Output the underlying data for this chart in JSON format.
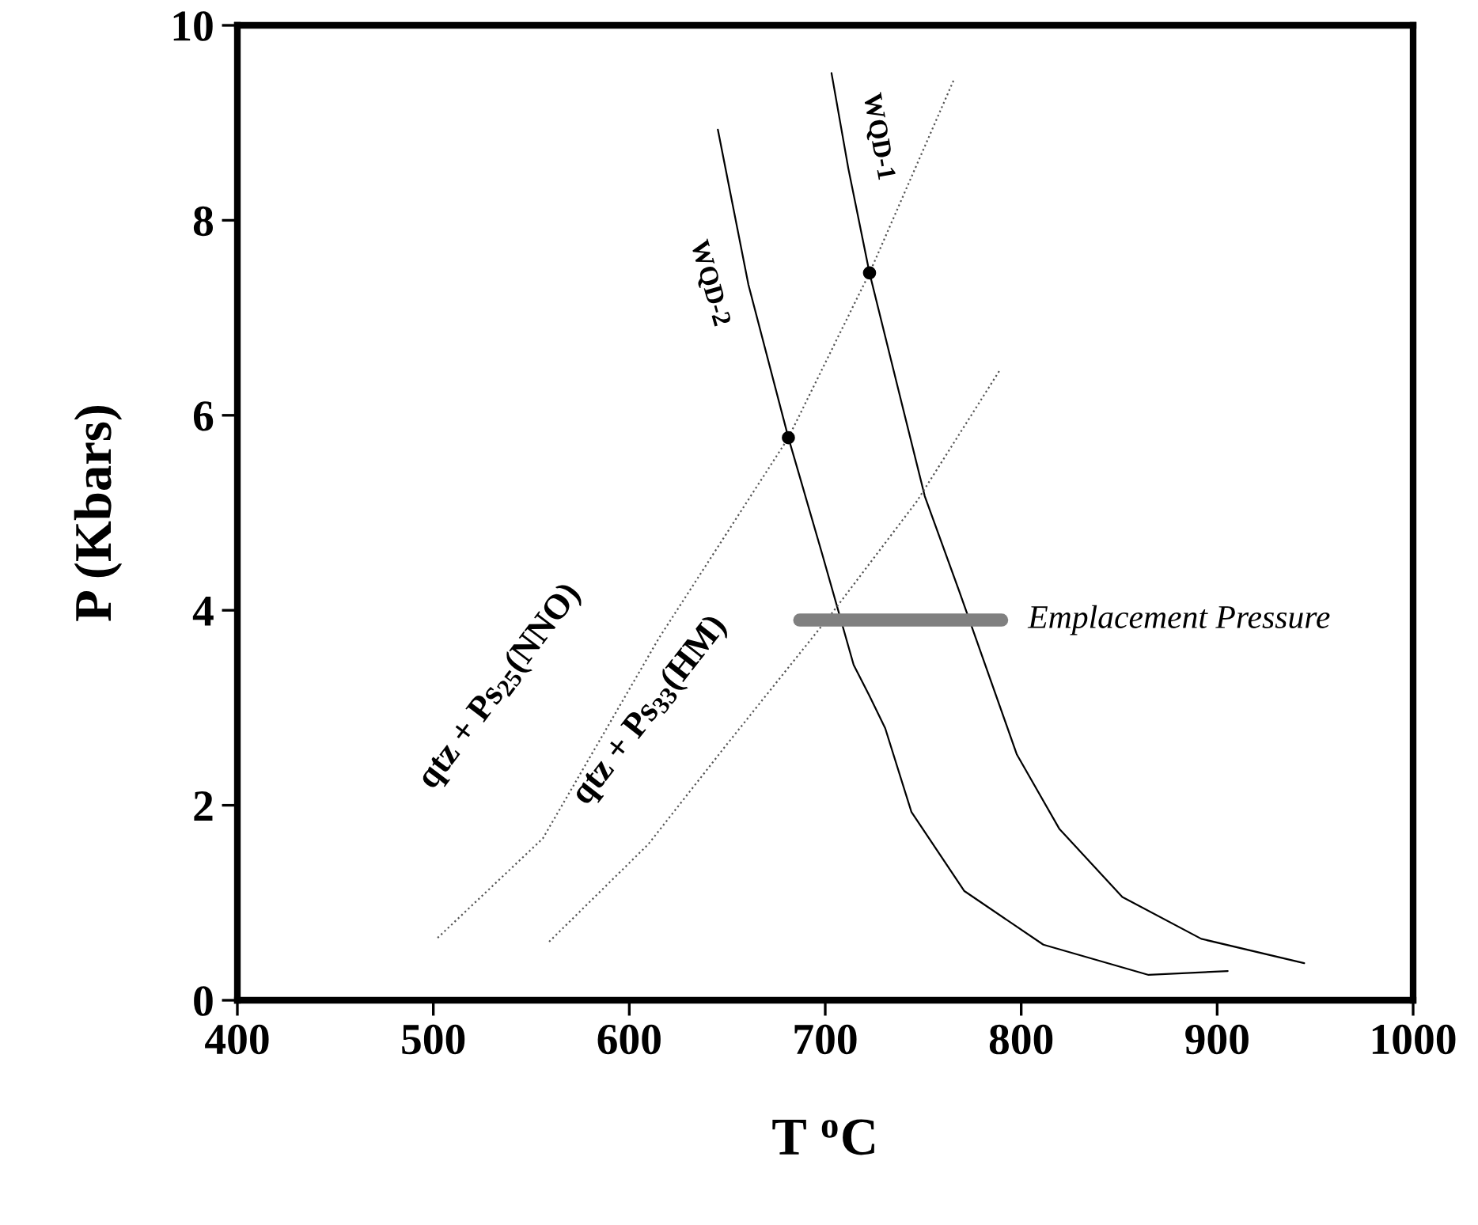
{
  "chart_data": {
    "type": "line",
    "xlabel": "T $^{o}$C",
    "ylabel": "P (Kbars)",
    "xlim": [
      400,
      1000
    ],
    "ylim": [
      0,
      10
    ],
    "xticks": [
      400,
      500,
      600,
      700,
      800,
      900,
      1000
    ],
    "yticks": [
      0,
      2,
      4,
      6,
      8,
      10
    ],
    "grid": false,
    "legend": false,
    "series": [
      {
        "name": "WQD-1",
        "color": "#000000",
        "line_style": "solid",
        "x": [
          703.2,
          711.8,
          722.6,
          738.7,
          750.8,
          768.3,
          797.8,
          819.4,
          851.6,
          891.9,
          944.4
        ],
        "values": [
          9.51,
          8.53,
          7.46,
          6.15,
          5.17,
          4.2,
          2.52,
          1.76,
          1.06,
          0.63,
          0.38
        ]
      },
      {
        "name": "WQD-2",
        "color": "#000000",
        "line_style": "solid",
        "x": [
          645.2,
          660.8,
          681.2,
          698.4,
          714.5,
          722.6,
          730.6,
          744.0,
          771.0,
          811.3,
          865.0,
          905.4
        ],
        "values": [
          8.93,
          7.34,
          5.77,
          4.58,
          3.44,
          3.12,
          2.79,
          1.93,
          1.12,
          0.57,
          0.26,
          0.3
        ]
      },
      {
        "name": "qtz + Ps$_{25}$(NNO)",
        "color": "#555555",
        "line_style": "dotted",
        "x": [
          502.2,
          555.9,
          615.0,
          681.2,
          722.6,
          765.6
        ],
        "values": [
          0.64,
          1.66,
          3.71,
          5.77,
          7.46,
          9.44
        ]
      },
      {
        "name": "qtz + Ps$_{33}$(HM)",
        "color": "#555555",
        "line_style": "dotted",
        "x": [
          559.1,
          609.7,
          650.0,
          703.8,
          746.8,
          789.3
        ],
        "values": [
          0.6,
          1.6,
          2.63,
          3.98,
          5.12,
          6.47
        ]
      },
      {
        "name": "Emplacement Pressure",
        "color": "#808080",
        "line_style": "solid",
        "x": [
          687,
          790
        ],
        "values": [
          3.9,
          3.9
        ]
      },
      {
        "type": "scatter",
        "color": "#000000",
        "marker": "circle",
        "x": [
          722.6,
          681.2
        ],
        "values": [
          7.46,
          5.77
        ]
      }
    ]
  }
}
